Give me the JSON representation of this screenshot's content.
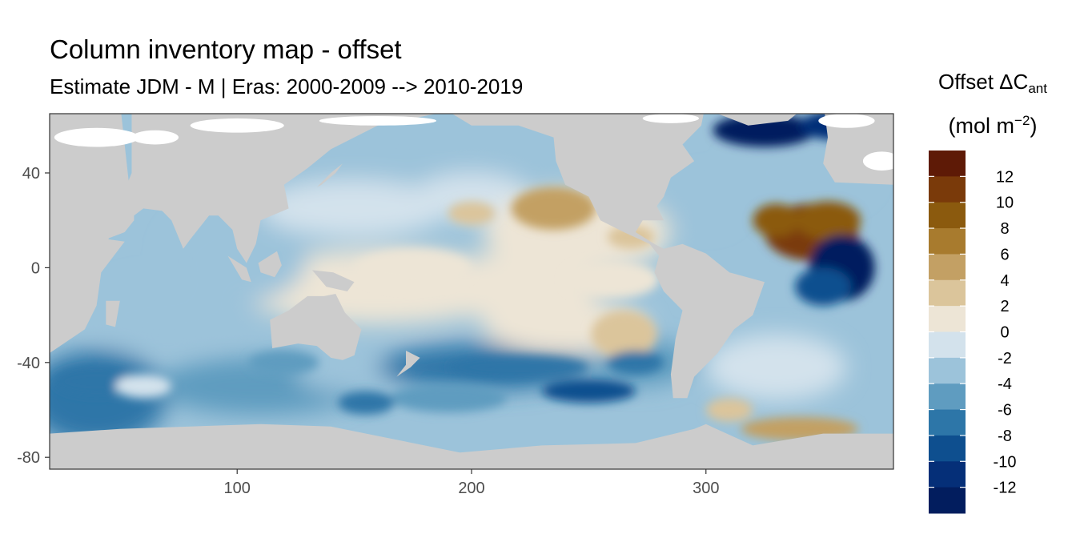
{
  "title": "Column inventory map - offset",
  "subtitle": "Estimate JDM - M | Eras: 2000-2009 --> 2010-2019",
  "legend": {
    "title_main": "Offset ΔC",
    "title_sub": "ant",
    "title_unit_pre": "(mol m",
    "title_unit_sup": "−2",
    "title_unit_post": ")",
    "colors": [
      "#5e1a06",
      "#7a3a0a",
      "#8b5a0e",
      "#a87b2e",
      "#c3a064",
      "#dbc59b",
      "#ede5d6",
      "#d3e2ec",
      "#9cc3da",
      "#5f9cc0",
      "#2d76a8",
      "#0e4f8f",
      "#052f78",
      "#021d5e"
    ],
    "tick_labels": [
      "12",
      "10",
      "8",
      "6",
      "4",
      "2",
      "0",
      "-2",
      "-4",
      "-6",
      "-8",
      "-10",
      "-12"
    ]
  },
  "chart_data": {
    "type": "heatmap",
    "title": "Column inventory map - offset",
    "subtitle": "Estimate JDM - M | Eras: 2000-2009 --> 2010-2019",
    "xlabel": "",
    "ylabel": "",
    "xlim": [
      20,
      380
    ],
    "ylim": [
      -85,
      65
    ],
    "x_ticks": [
      100,
      200,
      300
    ],
    "y_ticks": [
      40,
      0,
      -40,
      -80
    ],
    "grid": false,
    "land_color": "#cccccc",
    "legend_placement": "right",
    "color_scale": {
      "breaks": [
        -14,
        -12,
        -10,
        -8,
        -6,
        -4,
        -2,
        0,
        2,
        4,
        6,
        8,
        10,
        12,
        14
      ],
      "colors": [
        "#021d5e",
        "#052f78",
        "#0e4f8f",
        "#2d76a8",
        "#5f9cc0",
        "#9cc3da",
        "#d3e2ec",
        "#ede5d6",
        "#dbc59b",
        "#c3a064",
        "#a87b2e",
        "#8b5a0e",
        "#7a3a0a",
        "#5e1a06"
      ]
    },
    "features": [
      {
        "lon": 330,
        "lat": 55,
        "value": -13
      },
      {
        "lon": 345,
        "lat": 15,
        "value": 12
      },
      {
        "lon": 355,
        "lat": -5,
        "value": -13
      },
      {
        "lon": 235,
        "lat": 25,
        "value": 4
      },
      {
        "lon": 240,
        "lat": -25,
        "value": 3
      },
      {
        "lon": 250,
        "lat": -52,
        "value": -10
      },
      {
        "lon": 330,
        "lat": -65,
        "value": 4
      },
      {
        "lon": 50,
        "lat": -55,
        "value": -8
      },
      {
        "lon": 90,
        "lat": 10,
        "value": -4
      },
      {
        "lon": 200,
        "lat": 0,
        "value": 1
      }
    ]
  }
}
